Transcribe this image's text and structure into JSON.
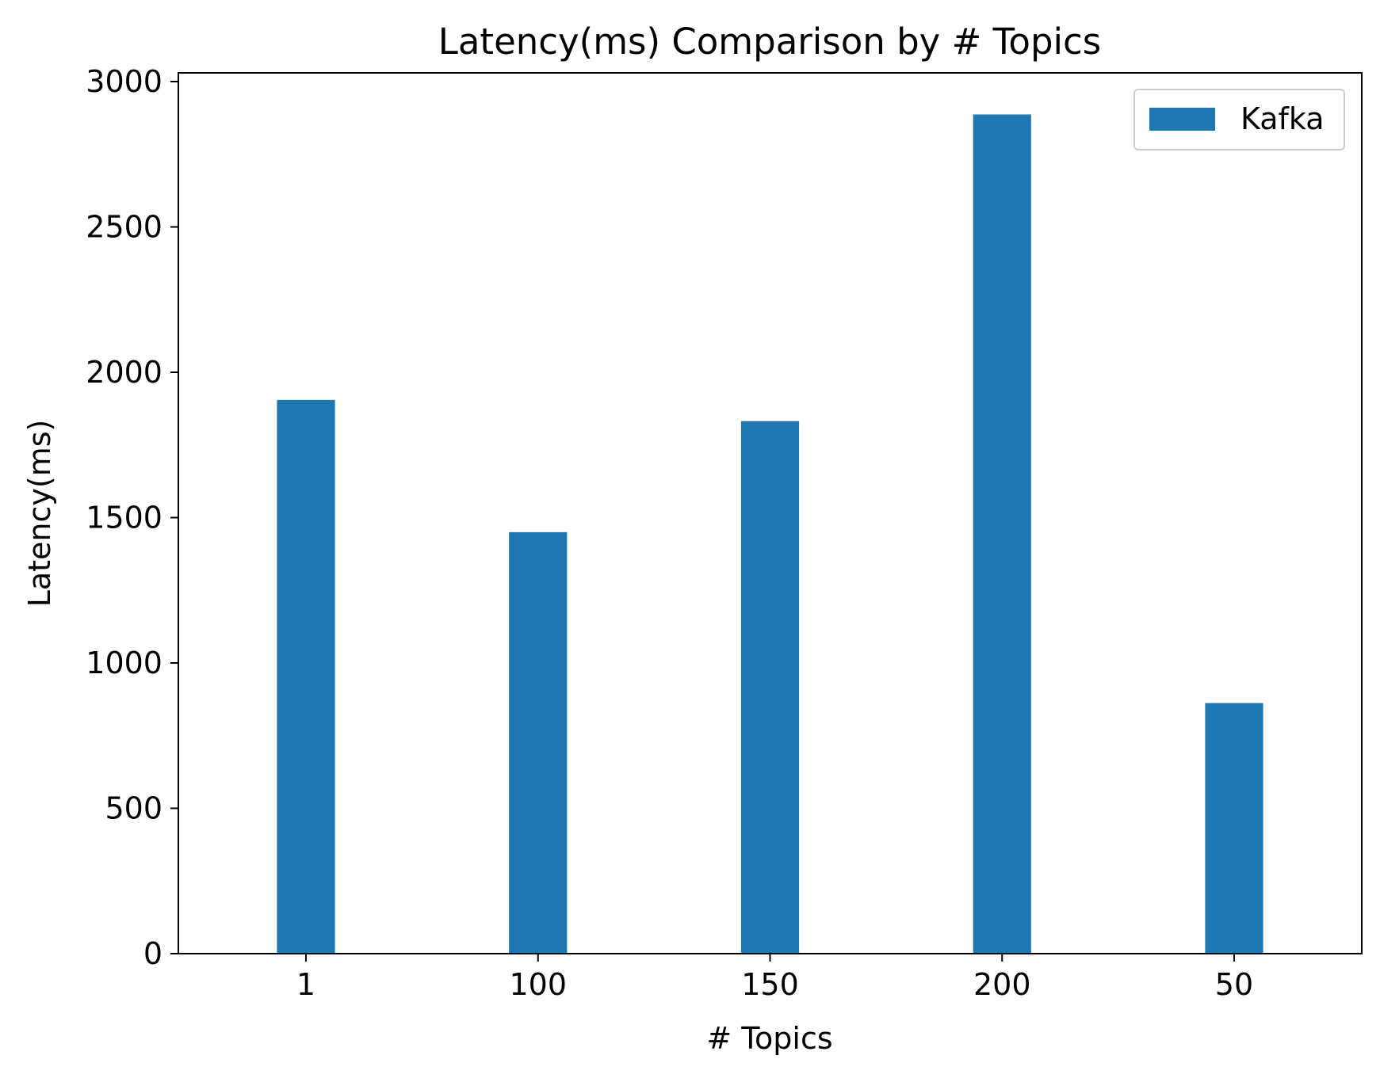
{
  "chart_data": {
    "type": "bar",
    "title": "Latency(ms) Comparison by # Topics",
    "xlabel": "# Topics",
    "ylabel": "Latency(ms)",
    "categories": [
      "1",
      "100",
      "150",
      "200",
      "50"
    ],
    "series": [
      {
        "name": "Kafka",
        "color": "#1f77b4",
        "values": [
          1905,
          1450,
          1832,
          2887,
          862
        ]
      }
    ],
    "ylim": [
      0,
      3030
    ],
    "yticks": [
      0,
      500,
      1000,
      1500,
      2000,
      2500,
      3000
    ],
    "grid": false,
    "legend_position": "top-right"
  }
}
